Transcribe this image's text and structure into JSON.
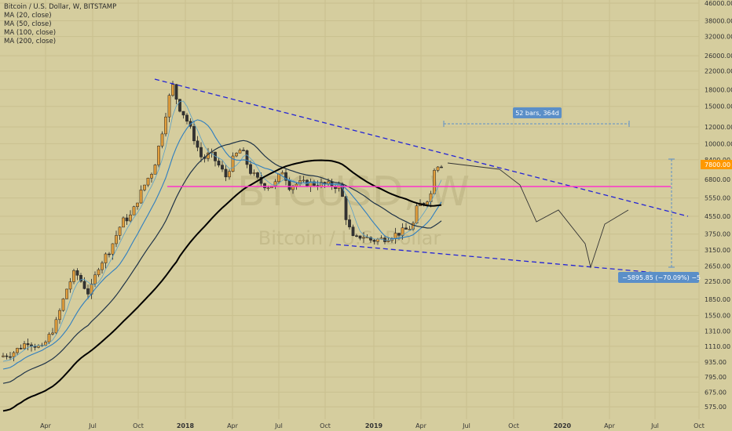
{
  "legend": {
    "title": "Bitcoin / U.S. Dollar, W, BITSTAMP",
    "studies": [
      "MA (20, close)",
      "MA (50, close)",
      "MA (100, close)",
      "MA (200, close)"
    ]
  },
  "watermark": {
    "symbol": "BTCUSD, W",
    "name": "Bitcoin / U.S. Dollar"
  },
  "chart_data": {
    "type": "candlestick",
    "y_scale": "log",
    "ylim": [
      520,
      46000
    ],
    "y_ticks": [
      "46000.00",
      "38000.00",
      "32000.00",
      "26000.00",
      "22000.00",
      "18000.00",
      "15000.00",
      "12000.00",
      "10000.00",
      "8400.00",
      "6800.00",
      "5550.00",
      "4550.00",
      "3750.00",
      "3150.00",
      "2650.00",
      "2250.00",
      "1850.00",
      "1550.00",
      "1310.00",
      "1110.00",
      "935.00",
      "795.00",
      "675.00",
      "575.00"
    ],
    "x_ticks": [
      "Apr",
      "Jul",
      "Oct",
      "2018",
      "Apr",
      "Jul",
      "Oct",
      "2019",
      "Apr",
      "Jul",
      "Oct",
      "2020",
      "Apr",
      "Jul",
      "Oct"
    ],
    "current_price": "7800.00",
    "current_price_color": "#ff9800",
    "measure_bars_label": "52 bars, 364d",
    "measure_price_label": "−5895.85 (−70.09%) −5",
    "colors": {
      "up": "#e39f3c",
      "down": "#333333",
      "ma20": "#5aa0c8",
      "ma50": "#2e7ec0",
      "ma100": "#1f3347",
      "ma200": "#000000",
      "trendline": "#2323d6",
      "support_line": "#ff33cc",
      "measure": "#5b8fc8"
    },
    "series": [
      {
        "name": "MA (20, close)"
      },
      {
        "name": "MA (50, close)"
      },
      {
        "name": "MA (100, close)"
      },
      {
        "name": "MA (200, close)"
      }
    ]
  }
}
